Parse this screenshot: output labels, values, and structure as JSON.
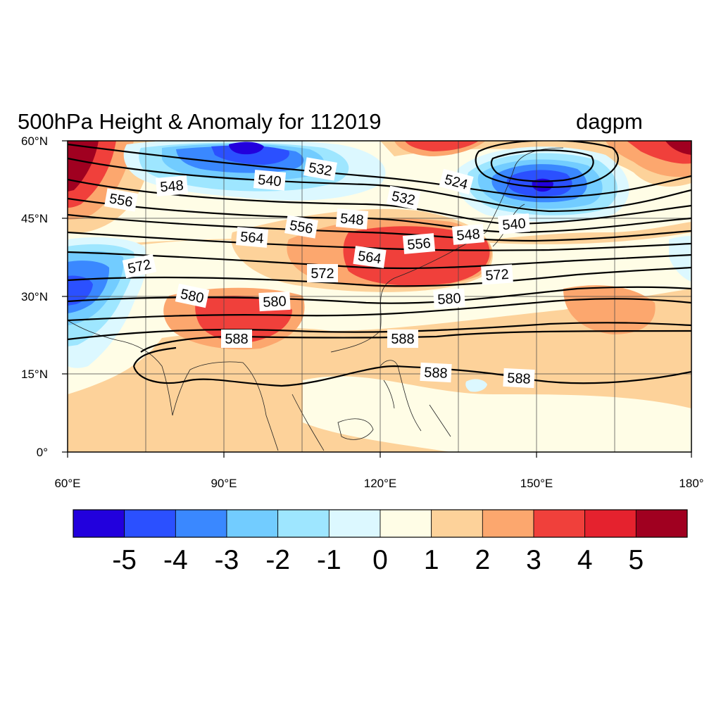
{
  "title": "500hPa Height & Anomaly for 112019",
  "units": "dagpm",
  "map": {
    "lon_range": [
      60,
      180
    ],
    "lat_range": [
      0,
      60
    ],
    "lon_ticks": [
      "60°E",
      "90°E",
      "120°E",
      "150°E",
      "180°"
    ],
    "lat_ticks": [
      "60°N",
      "45°N",
      "30°N",
      "15°N",
      "0°"
    ],
    "grid": true
  },
  "colorbar": {
    "orientation": "horizontal",
    "labels": [
      "-5",
      "-4",
      "-3",
      "-2",
      "-1",
      "0",
      "1",
      "2",
      "3",
      "4",
      "5"
    ],
    "colors": [
      "#2200dd",
      "#2b50ff",
      "#3a88ff",
      "#72ccff",
      "#9ee6ff",
      "#dcf8ff",
      "#fffde6",
      "#fdd29a",
      "#fca76e",
      "#f0403b",
      "#e5222e",
      "#a00020"
    ]
  },
  "contour_labels": [
    "532",
    "540",
    "548",
    "556",
    "524",
    "532",
    "540",
    "548",
    "556",
    "564",
    "556",
    "548",
    "564",
    "572",
    "572",
    "572",
    "580",
    "580",
    "580",
    "588",
    "588",
    "588",
    "588"
  ]
}
